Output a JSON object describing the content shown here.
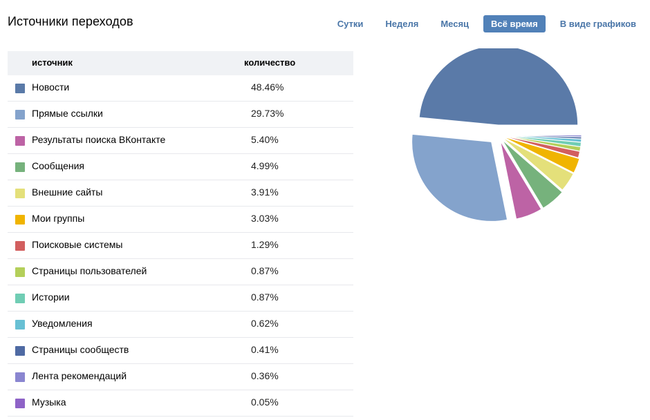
{
  "header": {
    "title": "Источники переходов",
    "tabs": [
      {
        "label": "Сутки",
        "active": false
      },
      {
        "label": "Неделя",
        "active": false
      },
      {
        "label": "Месяц",
        "active": false
      },
      {
        "label": "Всё время",
        "active": true
      },
      {
        "label": "В виде графиков",
        "active": false
      }
    ]
  },
  "table": {
    "col_source": "источник",
    "col_count": "количество"
  },
  "chart_data": {
    "type": "pie",
    "series": [
      {
        "name": "Новости",
        "value": 48.46,
        "label": "48.46%",
        "color": "#5a7aa8"
      },
      {
        "name": "Прямые ссылки",
        "value": 29.73,
        "label": "29.73%",
        "color": "#84a3cc"
      },
      {
        "name": "Результаты поиска ВКонтакте",
        "value": 5.4,
        "label": "5.40%",
        "color": "#bd63a5"
      },
      {
        "name": "Сообщения",
        "value": 4.99,
        "label": "4.99%",
        "color": "#76b27c"
      },
      {
        "name": "Внешние сайты",
        "value": 3.91,
        "label": "3.91%",
        "color": "#e4e07a"
      },
      {
        "name": "Мои группы",
        "value": 3.03,
        "label": "3.03%",
        "color": "#f0b400"
      },
      {
        "name": "Поисковые системы",
        "value": 1.29,
        "label": "1.29%",
        "color": "#d25f5f"
      },
      {
        "name": "Страницы пользователей",
        "value": 0.87,
        "label": "0.87%",
        "color": "#b4cf5a"
      },
      {
        "name": "Истории",
        "value": 0.87,
        "label": "0.87%",
        "color": "#70cdb4"
      },
      {
        "name": "Уведомления",
        "value": 0.62,
        "label": "0.62%",
        "color": "#68c0d4"
      },
      {
        "name": "Страницы сообществ",
        "value": 0.41,
        "label": "0.41%",
        "color": "#4f6aa3"
      },
      {
        "name": "Лента рекомендаций",
        "value": 0.36,
        "label": "0.36%",
        "color": "#8a86d0"
      },
      {
        "name": "Музыка",
        "value": 0.05,
        "label": "0.05%",
        "color": "#8e63c7"
      }
    ]
  }
}
